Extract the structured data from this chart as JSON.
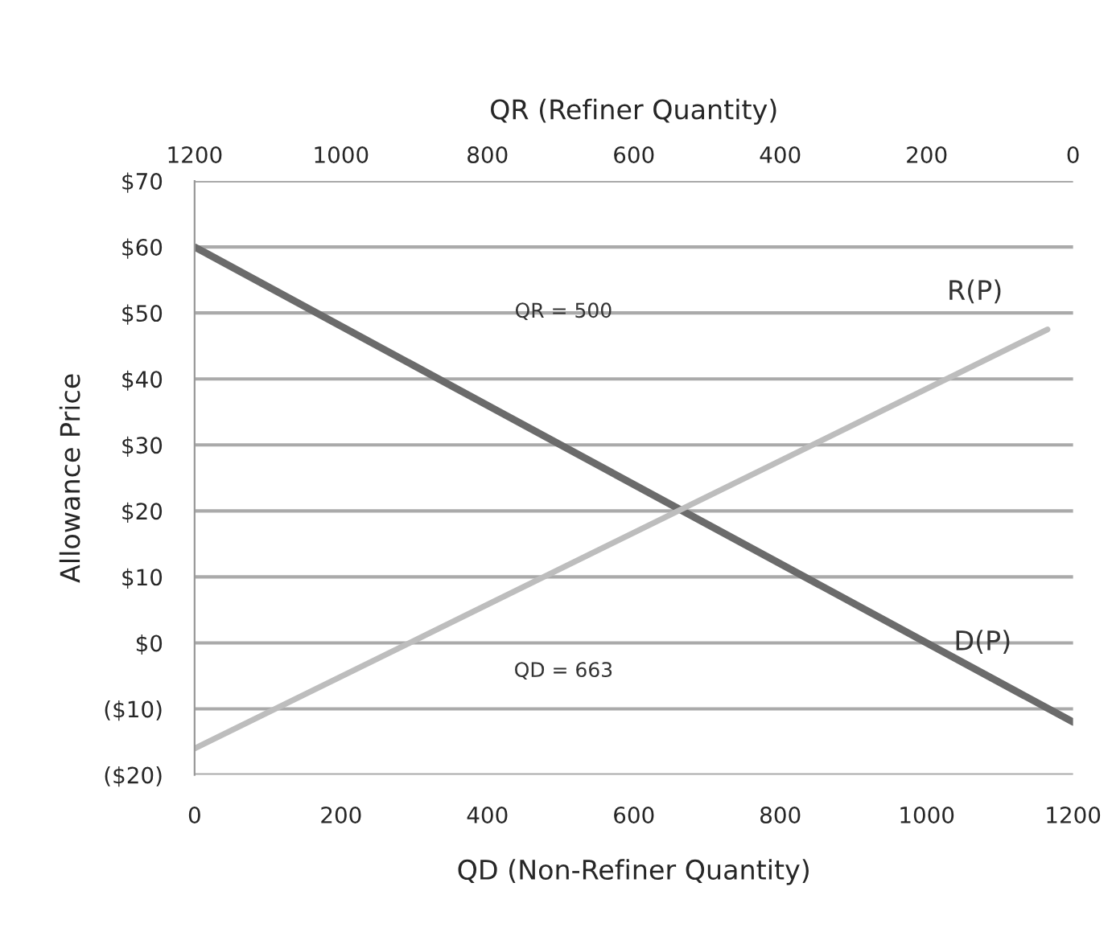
{
  "chart_data": {
    "type": "line",
    "xlabel": "QD (Non-Refiner Quantity)",
    "ylabel": "Allowance Price",
    "x2label": "QR (Refiner Quantity)",
    "series": [
      {
        "name": "D(P)",
        "color": "#6b6b6b",
        "x": [
          0,
          1200
        ],
        "values": [
          60,
          -12
        ]
      },
      {
        "name": "R(P)",
        "color": "#bdbdbd",
        "x": [
          0,
          1165
        ],
        "values": [
          -16,
          47.5
        ]
      }
    ],
    "xlim": [
      0,
      1200
    ],
    "xticks": [
      0,
      200,
      400,
      600,
      800,
      1000,
      1200
    ],
    "x2lim": [
      1200,
      0
    ],
    "x2ticks": [
      1200,
      1000,
      800,
      600,
      400,
      200,
      0
    ],
    "ylim": [
      -20,
      70
    ],
    "yticks": [
      {
        "value": -20,
        "label": "($20)"
      },
      {
        "value": -10,
        "label": "($10)"
      },
      {
        "value": 0,
        "label": "$0"
      },
      {
        "value": 10,
        "label": "$10"
      },
      {
        "value": 20,
        "label": "$20"
      },
      {
        "value": 30,
        "label": "$30"
      },
      {
        "value": 40,
        "label": "$40"
      },
      {
        "value": 50,
        "label": "$50"
      },
      {
        "value": 60,
        "label": "$60"
      },
      {
        "value": 70,
        "label": "$70"
      }
    ],
    "grid": "y",
    "annotations": [
      "QR = 500",
      "QD = 663"
    ]
  }
}
